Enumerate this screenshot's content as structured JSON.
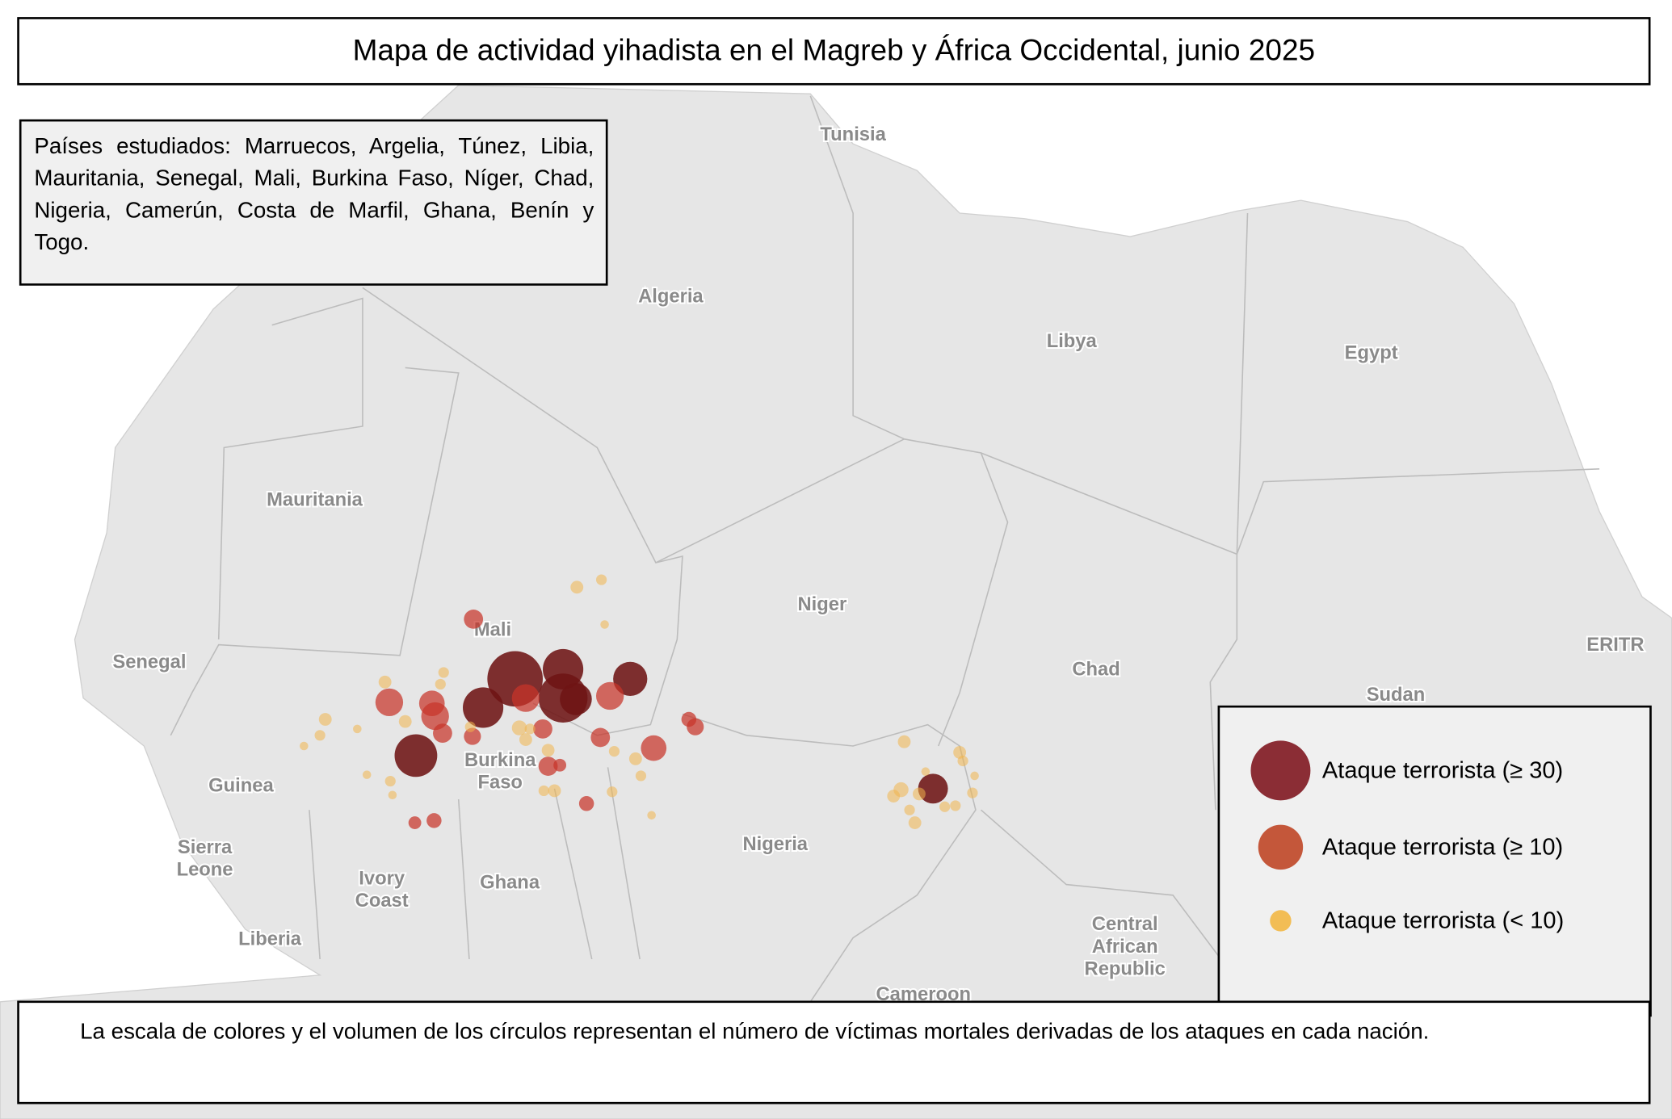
{
  "title": "Mapa de actividad yihadista en el Magreb y África Occidental, junio 2025",
  "note": "Países estudiados: Marruecos, Argelia, Túnez, Libia, Mauritania, Senegal, Mali, Burkina Faso, Níger, Chad, Nigeria, Camerún, Costa de Marfil, Ghana, Benín y Togo.",
  "legend": [
    "Ataque terrorista (≥ 30)",
    "Ataque terrorista (≥ 10)",
    "Ataque terrorista (< 10)"
  ],
  "footer": "La escala de colores y el volumen de los círculos representan el número de víctimas mortales derivadas de los ataques en cada nación.",
  "map_labels": [
    "Tunisia",
    "Algeria",
    "Libya",
    "Egypt",
    "Mauritania",
    "Niger",
    "Mali",
    "Chad",
    "Senegal",
    "ERITR",
    "Sudan",
    [
      "Burkina",
      "Faso"
    ],
    "Guinea",
    "Nigeria",
    [
      "Sierra",
      "Leone"
    ],
    [
      "Ivory",
      "Coast"
    ],
    "Ghana",
    "Liberia",
    [
      "Central",
      "African",
      "Republic"
    ],
    "Cameroon"
  ]
}
